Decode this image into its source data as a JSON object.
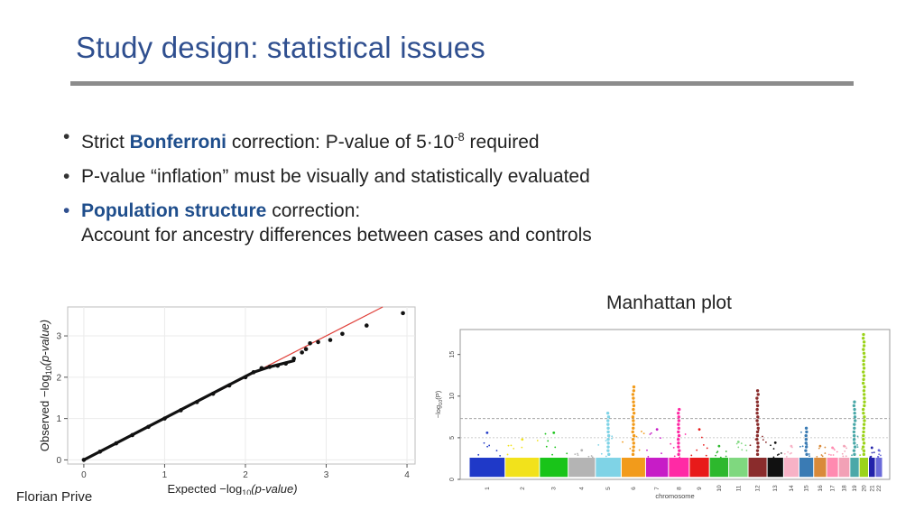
{
  "slide": {
    "title": "Study design: statistical issues",
    "author": "Florian Prive"
  },
  "bullets": [
    {
      "prefix": "Strict ",
      "highlight": "Bonferroni",
      "rest": " correction: P-value of 5·10",
      "sup": "-8",
      "tail": " required"
    },
    {
      "text": "P-value “inflation” must be visually and statistically evaluated"
    },
    {
      "highlight": "Population structure",
      "rest": " correction:",
      "line2": "Account for ancestry differences between cases and controls"
    }
  ],
  "manhattan_caption": "Manhattan plot",
  "colors": {
    "title": "#2f4f8f",
    "highlight": "#1f4e8c",
    "rule": "#8c8c8c",
    "qq_line": "#e0403a"
  },
  "chart_data": [
    {
      "type": "scatter",
      "title": "",
      "xlabel_main": "Expected",
      "xlabel_sub": "−log",
      "xlabel_base": "10",
      "xlabel_arg": "(p-value)",
      "ylabel_main": "Observed",
      "ylabel_sub": "−log",
      "ylabel_base": "10",
      "ylabel_arg": "(p-value)",
      "xlim": [
        -0.2,
        4.1
      ],
      "ylim": [
        -0.1,
        3.7
      ],
      "xticks": [
        0,
        1,
        2,
        3,
        4
      ],
      "yticks": [
        0,
        1,
        2,
        3
      ],
      "reference_line": {
        "slope": 1,
        "intercept": 0
      },
      "x": [
        0.0,
        0.2,
        0.4,
        0.6,
        0.8,
        1.0,
        1.2,
        1.4,
        1.6,
        1.8,
        2.0,
        2.1,
        2.2,
        2.3,
        2.4,
        2.5,
        2.6,
        2.7,
        2.75,
        2.8,
        2.9,
        3.05,
        3.2,
        3.5,
        3.95
      ],
      "y": [
        0.0,
        0.2,
        0.4,
        0.6,
        0.8,
        1.0,
        1.2,
        1.4,
        1.6,
        1.8,
        2.0,
        2.12,
        2.22,
        2.25,
        2.28,
        2.33,
        2.45,
        2.6,
        2.68,
        2.82,
        2.85,
        2.9,
        3.05,
        3.25,
        3.55
      ]
    },
    {
      "type": "scatter",
      "title": "Manhattan plot",
      "xlabel": "chromosome",
      "ylabel_pre": "−log",
      "ylabel_base": "10",
      "ylabel_arg": "(P)",
      "ylim": [
        0,
        18
      ],
      "yticks": [
        0,
        5,
        10,
        15
      ],
      "significance_line": 7.3,
      "suggestive_line": 5,
      "categories": [
        "1",
        "2",
        "3",
        "4",
        "5",
        "6",
        "7",
        "8",
        "9",
        "10",
        "11",
        "12",
        "13",
        "14",
        "15",
        "16",
        "17",
        "18",
        "19",
        "20",
        "21",
        "22"
      ],
      "chrom_colors": [
        "#1f39c8",
        "#f2e21b",
        "#19c419",
        "#b4b4b4",
        "#7fd3e6",
        "#f29b1b",
        "#c71cc7",
        "#ff2aa5",
        "#e81a1a",
        "#2db82d",
        "#7fd87f",
        "#8a2c2c",
        "#111111",
        "#f7b2c6",
        "#3a7bb4",
        "#d98a3a",
        "#ff8ab0",
        "#f2a1b6",
        "#4aa8a8",
        "#9bd31a",
        "#2222aa",
        "#6a6ad9"
      ],
      "peak_values": [
        5.6,
        4.8,
        5.6,
        3.5,
        8.2,
        11.2,
        6.0,
        8.7,
        6.0,
        4.0,
        4.5,
        10.9,
        4.4,
        4.0,
        6.2,
        4.0,
        3.8,
        4.0,
        9.3,
        17.5,
        3.8,
        3.5
      ]
    }
  ]
}
